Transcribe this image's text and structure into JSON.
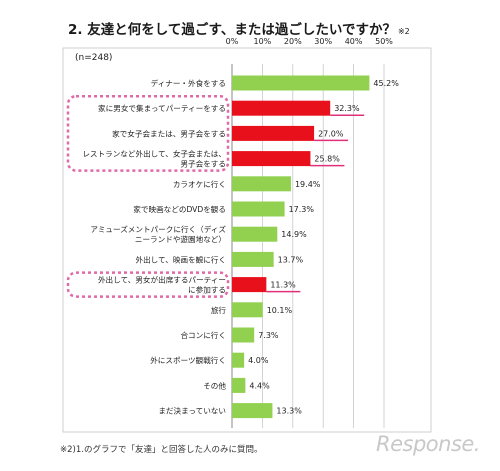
{
  "title": "2. 友達と何をして過ごす、または過ごしたいですか？",
  "title_note": "※2",
  "footnote": "※2)1.のグラフで「友達」と回答した人のみに質問。",
  "watermark": "Response.",
  "colors": {
    "green": "#92d050",
    "red": "#e8101a",
    "highlight_frame": "#e06aa8",
    "underline": "#e0307a",
    "grid": "#c8c8c8"
  },
  "chart_data": {
    "type": "bar",
    "orientation": "horizontal",
    "sample_label": "(n=248)",
    "unit": "%",
    "xlim": [
      0,
      50
    ],
    "xticks": [
      "0%",
      "10%",
      "20%",
      "30%",
      "40%",
      "50%"
    ],
    "grid": true,
    "categories": [
      [
        "ディナー・外食をする"
      ],
      [
        "家に男女で集まってパーティーをする"
      ],
      [
        "家で女子会または、男子会をする"
      ],
      [
        "レストランなど外出して、女子会または、",
        "男子会をする"
      ],
      [
        "カラオケに行く"
      ],
      [
        "家で映画などのDVDを観る"
      ],
      [
        "アミューズメントパークに行く（ディズ",
        "ニーランドや遊園地など）"
      ],
      [
        "外出して、映画を観に行く"
      ],
      [
        "外出して、男女が出席するパーティー",
        "に参加する"
      ],
      [
        "旅行"
      ],
      [
        "合コンに行く"
      ],
      [
        "外にスポーツ観戦行く"
      ],
      [
        "その他"
      ],
      [
        "まだ決まっていない"
      ]
    ],
    "values": [
      45.2,
      32.3,
      27.0,
      25.8,
      19.4,
      17.3,
      14.9,
      13.7,
      11.3,
      10.1,
      7.3,
      4.0,
      4.4,
      13.3
    ],
    "value_labels": [
      "45.2%",
      "32.3%",
      "27.0%",
      "25.8%",
      "19.4%",
      "17.3%",
      "14.9%",
      "13.7%",
      "11.3%",
      "10.1%",
      "7.3%",
      "4.0%",
      "4.4%",
      "13.3%"
    ],
    "bar_colors": [
      "green",
      "red",
      "red",
      "red",
      "green",
      "green",
      "green",
      "green",
      "red",
      "green",
      "green",
      "green",
      "green",
      "green"
    ],
    "highlighted_groups": [
      [
        1,
        3
      ],
      [
        8,
        8
      ]
    ]
  }
}
